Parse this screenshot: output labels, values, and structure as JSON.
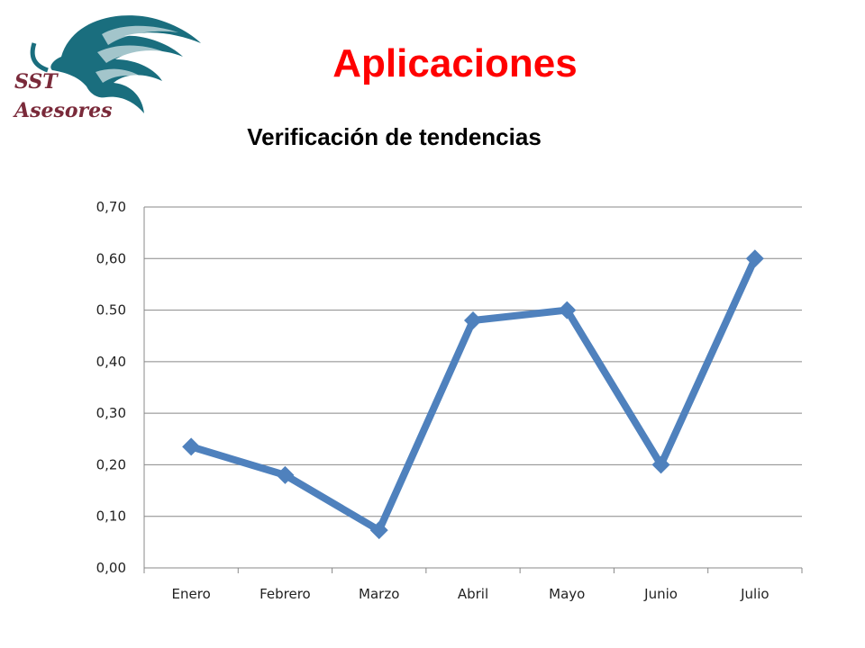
{
  "logo": {
    "line1": "SST",
    "line2": "Asesores"
  },
  "slide_title": "Aplicaciones",
  "colors": {
    "title": "#ff0000",
    "series": "#4f81bd",
    "grid": "#888888",
    "logo": "#1a6e7e"
  },
  "chart_data": {
    "type": "line",
    "title": "Verificación de tendencias",
    "categories": [
      "Enero",
      "Febrero",
      "Marzo",
      "Abril",
      "Mayo",
      "Junio",
      "Julio"
    ],
    "series": [
      {
        "values": [
          0.235,
          0.18,
          0.073,
          0.48,
          0.5,
          0.2,
          0.6
        ]
      }
    ],
    "ylim": [
      0,
      0.7
    ],
    "yticks": [
      "0,00",
      "0,10",
      "0,20",
      "0,30",
      "0,40",
      "0.50",
      "0,60",
      "0,70"
    ],
    "grid": true,
    "marker": "diamond",
    "legend": "none"
  }
}
